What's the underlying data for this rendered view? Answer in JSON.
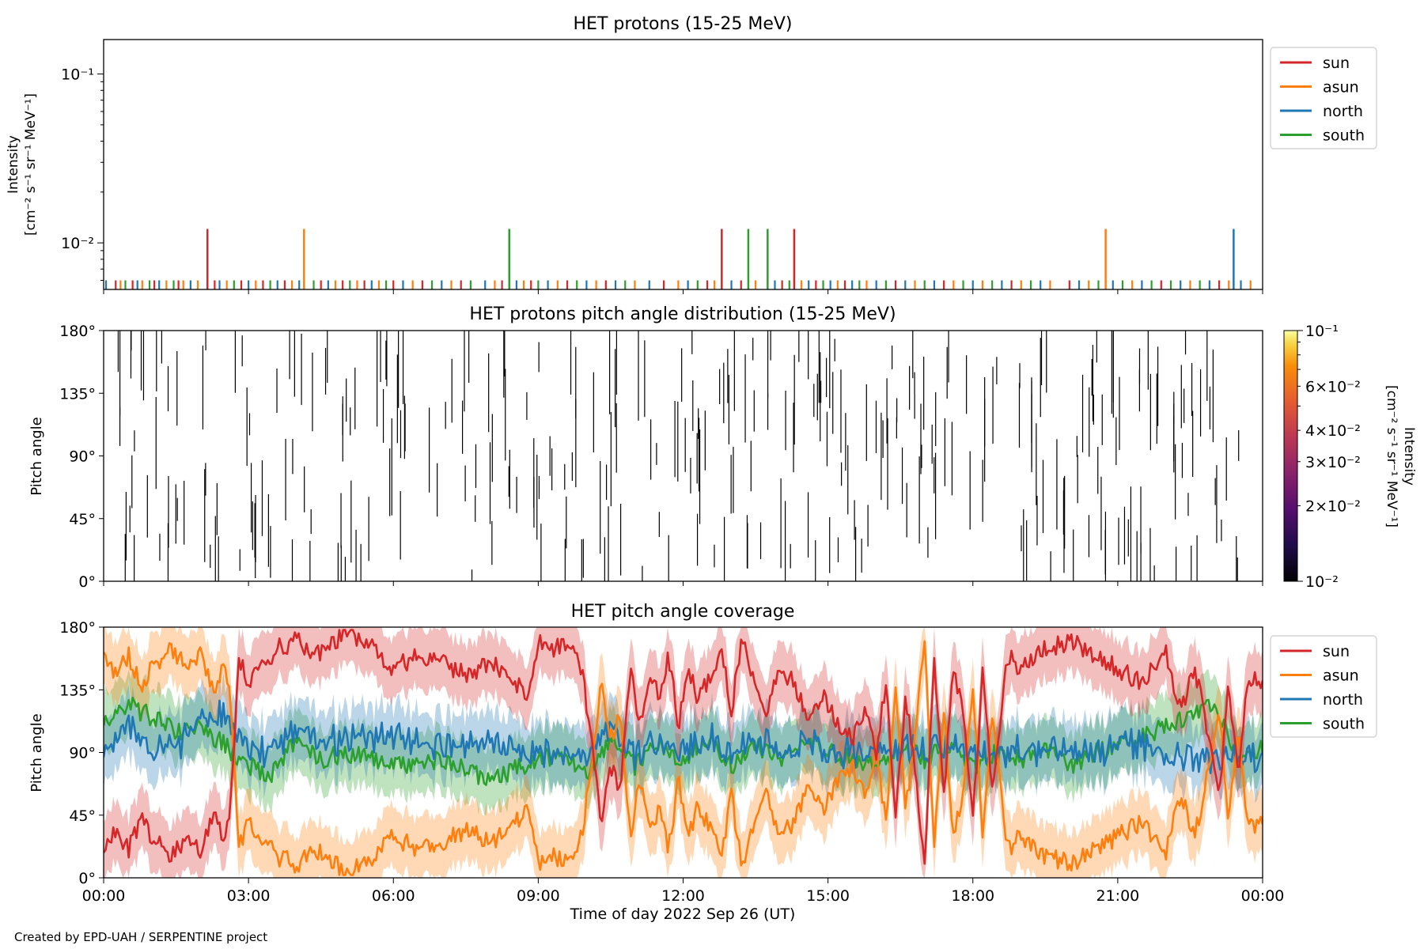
{
  "footer": "Created by EPD-UAH / SERPENTINE project",
  "chart_data": [
    {
      "type": "line",
      "title": "HET protons (15-25 MeV)",
      "ylabel": [
        "Intensity",
        "[cm⁻² s⁻¹ sr⁻¹ MeV⁻¹]"
      ],
      "yscale": "log",
      "ylim": [
        0.0053,
        0.16
      ],
      "yticks": [
        {
          "value": 0.1,
          "label": "10⁻¹"
        },
        {
          "value": 0.01,
          "label": "10⁻²"
        }
      ],
      "xlim": [
        0,
        24
      ],
      "legend": {
        "placement": "outside-top-right"
      },
      "colors": {
        "sun": "#d62728",
        "asun": "#ff7f0e",
        "north": "#1f77b4",
        "south": "#2ca02c"
      },
      "series": [
        {
          "name": "sun",
          "x": [
            2.15,
            12.8,
            14.3
          ],
          "y": [
            0.0121,
            0.0121,
            0.0121
          ]
        },
        {
          "name": "asun",
          "x": [
            4.15,
            20.75
          ],
          "y": [
            0.0121,
            0.0121
          ]
        },
        {
          "name": "north",
          "x": [
            23.4
          ],
          "y": [
            0.0121
          ]
        },
        {
          "name": "south",
          "x": [
            8.4,
            13.35,
            13.75
          ],
          "y": [
            0.0121,
            0.0121,
            0.0121
          ]
        }
      ],
      "baseline_value": 0.006,
      "baseline_spikes": [
        {
          "x": 0.05,
          "s": "north"
        },
        {
          "x": 0.25,
          "s": "sun"
        },
        {
          "x": 0.35,
          "s": "asun"
        },
        {
          "x": 0.45,
          "s": "south"
        },
        {
          "x": 0.6,
          "s": "sun"
        },
        {
          "x": 0.7,
          "s": "north"
        },
        {
          "x": 0.8,
          "s": "asun"
        },
        {
          "x": 0.95,
          "s": "south"
        },
        {
          "x": 1.05,
          "s": "sun"
        },
        {
          "x": 1.15,
          "s": "north"
        },
        {
          "x": 1.3,
          "s": "asun"
        },
        {
          "x": 1.45,
          "s": "south"
        },
        {
          "x": 1.55,
          "s": "sun"
        },
        {
          "x": 1.65,
          "s": "asun"
        },
        {
          "x": 1.8,
          "s": "north"
        },
        {
          "x": 1.95,
          "s": "asun"
        },
        {
          "x": 2.3,
          "s": "sun"
        },
        {
          "x": 2.4,
          "s": "north"
        },
        {
          "x": 2.55,
          "s": "asun"
        },
        {
          "x": 2.7,
          "s": "south"
        },
        {
          "x": 2.85,
          "s": "sun"
        },
        {
          "x": 3.0,
          "s": "north"
        },
        {
          "x": 3.15,
          "s": "asun"
        },
        {
          "x": 3.3,
          "s": "sun"
        },
        {
          "x": 3.45,
          "s": "south"
        },
        {
          "x": 3.6,
          "s": "north"
        },
        {
          "x": 3.75,
          "s": "sun"
        },
        {
          "x": 3.9,
          "s": "asun"
        },
        {
          "x": 4.05,
          "s": "north"
        },
        {
          "x": 4.35,
          "s": "south"
        },
        {
          "x": 4.5,
          "s": "sun"
        },
        {
          "x": 4.65,
          "s": "north"
        },
        {
          "x": 4.8,
          "s": "asun"
        },
        {
          "x": 4.95,
          "s": "sun"
        },
        {
          "x": 5.1,
          "s": "south"
        },
        {
          "x": 5.25,
          "s": "asun"
        },
        {
          "x": 5.4,
          "s": "sun"
        },
        {
          "x": 5.55,
          "s": "north"
        },
        {
          "x": 5.7,
          "s": "asun"
        },
        {
          "x": 5.85,
          "s": "south"
        },
        {
          "x": 6.0,
          "s": "sun"
        },
        {
          "x": 6.2,
          "s": "north"
        },
        {
          "x": 6.4,
          "s": "asun"
        },
        {
          "x": 6.6,
          "s": "sun"
        },
        {
          "x": 6.8,
          "s": "south"
        },
        {
          "x": 7.0,
          "s": "north"
        },
        {
          "x": 7.2,
          "s": "asun"
        },
        {
          "x": 7.4,
          "s": "sun"
        },
        {
          "x": 7.6,
          "s": "south"
        },
        {
          "x": 7.9,
          "s": "north"
        },
        {
          "x": 8.1,
          "s": "asun"
        },
        {
          "x": 8.25,
          "s": "sun"
        },
        {
          "x": 8.55,
          "s": "north"
        },
        {
          "x": 8.7,
          "s": "asun"
        },
        {
          "x": 8.85,
          "s": "sun"
        },
        {
          "x": 9.0,
          "s": "south"
        },
        {
          "x": 9.2,
          "s": "north"
        },
        {
          "x": 9.4,
          "s": "asun"
        },
        {
          "x": 9.6,
          "s": "sun"
        },
        {
          "x": 9.8,
          "s": "south"
        },
        {
          "x": 10.0,
          "s": "north"
        },
        {
          "x": 10.2,
          "s": "asun"
        },
        {
          "x": 10.4,
          "s": "sun"
        },
        {
          "x": 10.6,
          "s": "north"
        },
        {
          "x": 10.8,
          "s": "south"
        },
        {
          "x": 11.0,
          "s": "asun"
        },
        {
          "x": 11.3,
          "s": "north"
        },
        {
          "x": 11.6,
          "s": "sun"
        },
        {
          "x": 11.9,
          "s": "asun"
        },
        {
          "x": 12.1,
          "s": "north"
        },
        {
          "x": 12.3,
          "s": "south"
        },
        {
          "x": 12.5,
          "s": "sun"
        },
        {
          "x": 12.65,
          "s": "asun"
        },
        {
          "x": 13.0,
          "s": "north"
        },
        {
          "x": 13.2,
          "s": "sun"
        },
        {
          "x": 13.5,
          "s": "asun"
        },
        {
          "x": 13.9,
          "s": "north"
        },
        {
          "x": 14.05,
          "s": "sun"
        },
        {
          "x": 14.2,
          "s": "south"
        },
        {
          "x": 14.45,
          "s": "asun"
        },
        {
          "x": 14.6,
          "s": "north"
        },
        {
          "x": 14.75,
          "s": "sun"
        },
        {
          "x": 14.9,
          "s": "south"
        },
        {
          "x": 15.05,
          "s": "north"
        },
        {
          "x": 15.2,
          "s": "asun"
        },
        {
          "x": 15.35,
          "s": "sun"
        },
        {
          "x": 15.5,
          "s": "north"
        },
        {
          "x": 15.65,
          "s": "south"
        },
        {
          "x": 15.8,
          "s": "asun"
        },
        {
          "x": 16.0,
          "s": "north"
        },
        {
          "x": 16.2,
          "s": "south"
        },
        {
          "x": 16.4,
          "s": "sun"
        },
        {
          "x": 16.6,
          "s": "north"
        },
        {
          "x": 16.8,
          "s": "asun"
        },
        {
          "x": 17.0,
          "s": "south"
        },
        {
          "x": 17.2,
          "s": "north"
        },
        {
          "x": 17.4,
          "s": "sun"
        },
        {
          "x": 17.6,
          "s": "asun"
        },
        {
          "x": 17.8,
          "s": "south"
        },
        {
          "x": 18.0,
          "s": "north"
        },
        {
          "x": 18.2,
          "s": "asun"
        },
        {
          "x": 18.4,
          "s": "south"
        },
        {
          "x": 18.6,
          "s": "north"
        },
        {
          "x": 18.8,
          "s": "sun"
        },
        {
          "x": 19.0,
          "s": "asun"
        },
        {
          "x": 19.2,
          "s": "south"
        },
        {
          "x": 19.4,
          "s": "north"
        },
        {
          "x": 19.6,
          "s": "asun"
        },
        {
          "x": 20.0,
          "s": "sun"
        },
        {
          "x": 20.2,
          "s": "north"
        },
        {
          "x": 20.4,
          "s": "asun"
        },
        {
          "x": 20.6,
          "s": "south"
        },
        {
          "x": 20.9,
          "s": "north"
        },
        {
          "x": 21.1,
          "s": "south"
        },
        {
          "x": 21.3,
          "s": "asun"
        },
        {
          "x": 21.5,
          "s": "north"
        },
        {
          "x": 21.7,
          "s": "south"
        },
        {
          "x": 21.9,
          "s": "sun"
        },
        {
          "x": 22.1,
          "s": "south"
        },
        {
          "x": 22.3,
          "s": "north"
        },
        {
          "x": 22.5,
          "s": "asun"
        },
        {
          "x": 22.7,
          "s": "south"
        },
        {
          "x": 22.9,
          "s": "north"
        },
        {
          "x": 23.1,
          "s": "sun"
        },
        {
          "x": 23.3,
          "s": "asun"
        },
        {
          "x": 23.55,
          "s": "north"
        },
        {
          "x": 23.75,
          "s": "asun"
        }
      ]
    },
    {
      "type": "heatmap",
      "title": "HET protons pitch angle distribution (15-25 MeV)",
      "ylabel": "Pitch angle",
      "ylim": [
        0,
        180
      ],
      "yticks": [
        {
          "value": 0,
          "label": "0°"
        },
        {
          "value": 45,
          "label": "45°"
        },
        {
          "value": 90,
          "label": "90°"
        },
        {
          "value": 135,
          "label": "135°"
        },
        {
          "value": 180,
          "label": "180°"
        }
      ],
      "xlim": [
        0,
        24
      ],
      "colorbar": {
        "label": [
          "Intensity",
          "[cm⁻² s⁻¹ sr⁻¹ MeV⁻¹]"
        ],
        "scale": "log",
        "range": [
          0.01,
          0.1
        ],
        "colormap": "inferno",
        "ticks": [
          {
            "value": 0.1,
            "label": "10⁻¹"
          },
          {
            "value": 0.06,
            "label": "6×10⁻²"
          },
          {
            "value": 0.04,
            "label": "4×10⁻²"
          },
          {
            "value": 0.03,
            "label": "3×10⁻²"
          },
          {
            "value": 0.02,
            "label": "2×10⁻²"
          },
          {
            "value": 0.01,
            "label": "10⁻²"
          }
        ]
      },
      "segment_count": 320,
      "segment_seed": 7
    },
    {
      "type": "area",
      "title": "HET pitch angle coverage",
      "ylabel": "Pitch angle",
      "xlabel": "Time of day 2022 Sep 26 (UT)",
      "ylim": [
        0,
        180
      ],
      "yticks": [
        {
          "value": 0,
          "label": "0°"
        },
        {
          "value": 45,
          "label": "45°"
        },
        {
          "value": 90,
          "label": "90°"
        },
        {
          "value": 135,
          "label": "135°"
        },
        {
          "value": 180,
          "label": "180°"
        }
      ],
      "xlim": [
        0,
        24
      ],
      "xticks": [
        {
          "value": 0,
          "label": "00:00"
        },
        {
          "value": 3,
          "label": "03:00"
        },
        {
          "value": 6,
          "label": "06:00"
        },
        {
          "value": 9,
          "label": "09:00"
        },
        {
          "value": 12,
          "label": "12:00"
        },
        {
          "value": 15,
          "label": "15:00"
        },
        {
          "value": 18,
          "label": "18:00"
        },
        {
          "value": 21,
          "label": "21:00"
        },
        {
          "value": 24,
          "label": "00:00"
        }
      ],
      "legend": {
        "placement": "outside-top-right"
      },
      "band_halfwidth": 22,
      "sun_trace": {
        "x": [
          0,
          0.3,
          0.5,
          0.8,
          1.1,
          1.4,
          1.7,
          2.0,
          2.3,
          2.5,
          2.65,
          2.8,
          3.0,
          3.3,
          3.6,
          4.0,
          4.4,
          5.0,
          5.5,
          6.0,
          6.5,
          7.0,
          7.5,
          8.0,
          8.5,
          8.8,
          9.0,
          9.3,
          9.6,
          9.9,
          10.1,
          10.3,
          10.5,
          10.7,
          10.9,
          11.1,
          11.3,
          11.5,
          11.7,
          11.9,
          12.1,
          12.3,
          12.5,
          12.8,
          13.0,
          13.2,
          13.5,
          13.7,
          14.0,
          14.3,
          14.6,
          14.9,
          15.2,
          15.5,
          15.8,
          16.0,
          16.2,
          16.4,
          16.6,
          16.8,
          17.0,
          17.2,
          17.4,
          17.6,
          17.8,
          18.0,
          18.2,
          18.4,
          18.7,
          19.0,
          19.5,
          20.0,
          20.5,
          21.0,
          21.5,
          22.0,
          22.3,
          22.6,
          22.9,
          23.1,
          23.3,
          23.5,
          23.7,
          24
        ],
        "y": [
          25,
          35,
          20,
          40,
          25,
          15,
          30,
          20,
          45,
          25,
          60,
          160,
          140,
          150,
          165,
          170,
          160,
          175,
          170,
          150,
          160,
          155,
          145,
          155,
          140,
          130,
          170,
          165,
          170,
          150,
          100,
          40,
          80,
          60,
          150,
          110,
          145,
          130,
          160,
          110,
          150,
          130,
          140,
          165,
          120,
          170,
          140,
          120,
          150,
          140,
          110,
          130,
          110,
          100,
          120,
          90,
          140,
          40,
          130,
          80,
          10,
          160,
          60,
          150,
          120,
          40,
          150,
          60,
          160,
          150,
          165,
          170,
          160,
          150,
          140,
          160,
          120,
          150,
          100,
          60,
          140,
          70,
          145,
          140
        ]
      },
      "south_trace": {
        "x": [
          0,
          0.5,
          1.0,
          1.5,
          2.0,
          2.5,
          2.8,
          3.0,
          3.5,
          4.0,
          4.5,
          5.0,
          6.0,
          7.0,
          8.0,
          9.0,
          9.5,
          10.0,
          10.5,
          11.0,
          11.5,
          12.0,
          12.5,
          13.0,
          13.5,
          14.0,
          14.5,
          15.0,
          15.5,
          16.0,
          16.5,
          17.0,
          17.5,
          18.0,
          18.5,
          19.0,
          19.5,
          20.0,
          20.5,
          21.0,
          21.5,
          22.0,
          22.5,
          23.0,
          23.5,
          24
        ],
        "y": [
          110,
          125,
          115,
          105,
          110,
          95,
          85,
          80,
          75,
          100,
          85,
          90,
          80,
          85,
          70,
          85,
          90,
          75,
          100,
          80,
          95,
          85,
          100,
          80,
          95,
          85,
          100,
          90,
          85,
          80,
          95,
          85,
          95,
          80,
          90,
          85,
          95,
          80,
          90,
          95,
          100,
          110,
          115,
          125,
          85,
          95
        ]
      },
      "north_offsets": [
        -20,
        -15,
        -25,
        -10,
        5,
        20,
        15,
        10,
        20,
        5,
        15,
        10,
        20,
        10,
        25,
        5,
        0,
        15,
        10,
        5,
        0,
        10,
        0,
        10,
        5,
        5,
        0,
        0,
        5,
        10,
        0,
        5,
        0,
        10,
        0,
        5,
        0,
        10,
        0,
        0,
        -5,
        -20,
        -30,
        -40,
        0,
        -5
      ],
      "asun_rule": "180 - sun"
    }
  ]
}
